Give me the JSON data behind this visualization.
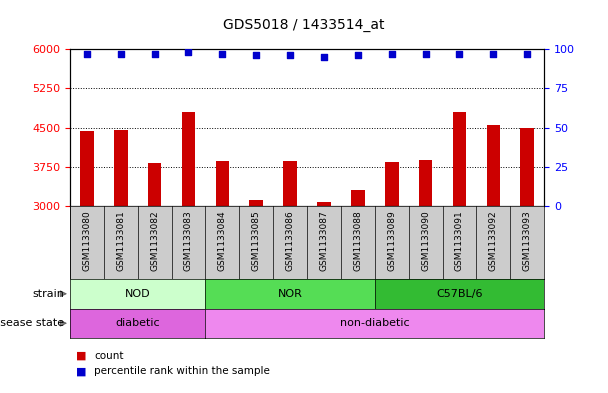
{
  "title": "GDS5018 / 1433514_at",
  "samples": [
    "GSM1133080",
    "GSM1133081",
    "GSM1133082",
    "GSM1133083",
    "GSM1133084",
    "GSM1133085",
    "GSM1133086",
    "GSM1133087",
    "GSM1133088",
    "GSM1133089",
    "GSM1133090",
    "GSM1133091",
    "GSM1133092",
    "GSM1133093"
  ],
  "counts": [
    4430,
    4450,
    3820,
    4800,
    3870,
    3130,
    3870,
    3080,
    3320,
    3840,
    3890,
    4800,
    4550,
    4490
  ],
  "percentiles": [
    97,
    97,
    97,
    98,
    97,
    96,
    96,
    95,
    96,
    97,
    97,
    97,
    97,
    97
  ],
  "ylim_left": [
    3000,
    6000
  ],
  "ylim_right": [
    0,
    100
  ],
  "yticks_left": [
    3000,
    3750,
    4500,
    5250,
    6000
  ],
  "yticks_right": [
    0,
    25,
    50,
    75,
    100
  ],
  "bar_color": "#cc0000",
  "dot_color": "#0000cc",
  "strain_groups": [
    {
      "label": "NOD",
      "start": 0,
      "end": 3,
      "color": "#ccffcc"
    },
    {
      "label": "NOR",
      "start": 4,
      "end": 8,
      "color": "#55dd55"
    },
    {
      "label": "C57BL/6",
      "start": 9,
      "end": 13,
      "color": "#33bb33"
    }
  ],
  "disease_groups": [
    {
      "label": "diabetic",
      "start": 0,
      "end": 3,
      "color": "#dd66dd"
    },
    {
      "label": "non-diabetic",
      "start": 4,
      "end": 13,
      "color": "#ee88ee"
    }
  ],
  "strain_label": "strain",
  "disease_label": "disease state",
  "legend_count": "count",
  "legend_percentile": "percentile rank within the sample",
  "sample_bg_color": "#cccccc",
  "title_fontsize": 10,
  "tick_fontsize": 8,
  "bar_width": 0.4
}
